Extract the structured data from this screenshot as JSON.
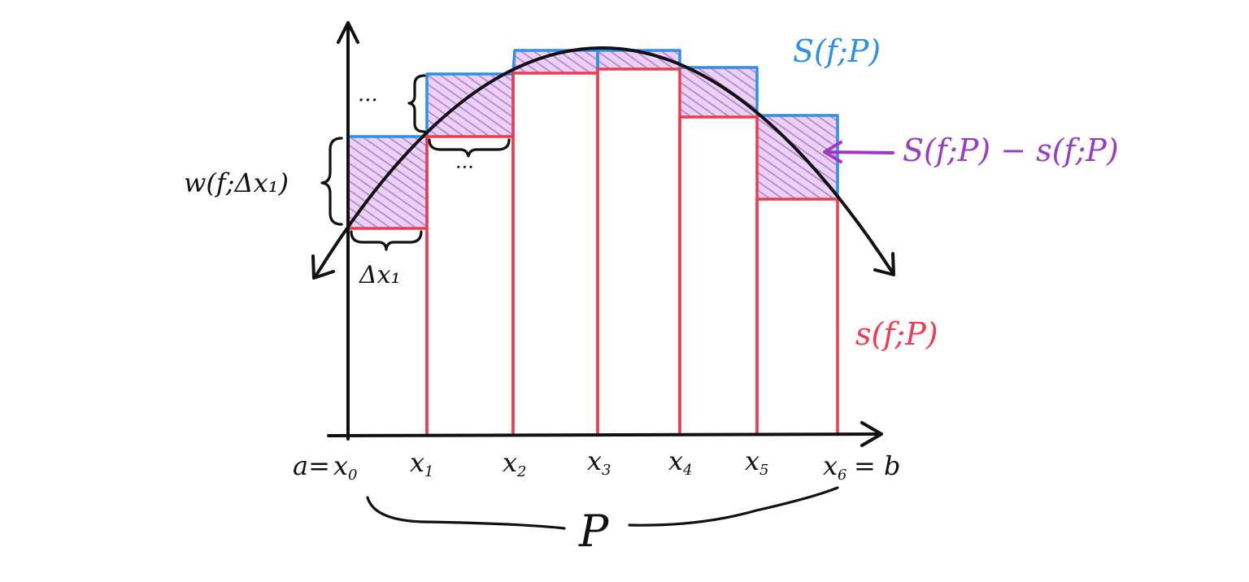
{
  "colors": {
    "upper": "#2f8fe8",
    "lower": "#ee3b4e",
    "difference": "#9b3bc4",
    "hatch": "#c58de0",
    "ink": "#111111"
  },
  "labels": {
    "upper_sum": "S(f;P)",
    "lower_sum": "s(f;P)",
    "difference": "S(f;P) − s(f;P)",
    "oscillation": "w(f;Δx₁)",
    "delta_x": "Δx₁",
    "dots_left": "···",
    "dots_bottom": "···",
    "a_eq": "a=",
    "eq_b": "= b",
    "partition": "P"
  },
  "ticks": [
    {
      "base": "x",
      "sub": "0"
    },
    {
      "base": "x",
      "sub": "1"
    },
    {
      "base": "x",
      "sub": "2"
    },
    {
      "base": "x",
      "sub": "3"
    },
    {
      "base": "x",
      "sub": "4"
    },
    {
      "base": "x",
      "sub": "5"
    },
    {
      "base": "x",
      "sub": "6"
    }
  ]
}
